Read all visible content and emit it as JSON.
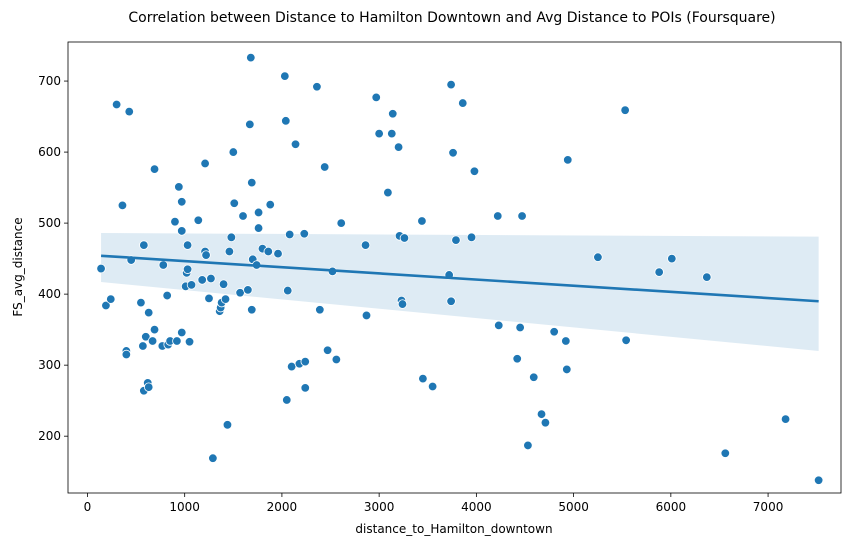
{
  "chart_data": {
    "type": "scatter",
    "title": "Correlation between Distance to Hamilton Downtown and Avg Distance to POIs (Foursquare)",
    "xlabel": "distance_to_Hamilton_downtown",
    "ylabel": "FS_avg_distance",
    "xlim": [
      -200,
      7750
    ],
    "ylim": [
      120,
      755
    ],
    "xticks": [
      0,
      1000,
      2000,
      3000,
      4000,
      5000,
      6000,
      7000
    ],
    "yticks": [
      200,
      300,
      400,
      500,
      600,
      700
    ],
    "grid": false,
    "colors": {
      "point": "#1f77b4",
      "line": "#1f77b4",
      "band": "#1f77b4"
    },
    "regression": {
      "x": [
        140,
        7520
      ],
      "y": [
        454,
        390
      ],
      "ci_lower": [
        417,
        320
      ],
      "ci_upper": [
        486,
        481
      ]
    },
    "points": [
      [
        140,
        436
      ],
      [
        190,
        384
      ],
      [
        240,
        393
      ],
      [
        300,
        667
      ],
      [
        360,
        525
      ],
      [
        400,
        320
      ],
      [
        400,
        315
      ],
      [
        430,
        657
      ],
      [
        450,
        448
      ],
      [
        550,
        388
      ],
      [
        570,
        327
      ],
      [
        580,
        469
      ],
      [
        580,
        264
      ],
      [
        600,
        340
      ],
      [
        620,
        275
      ],
      [
        630,
        269
      ],
      [
        630,
        374
      ],
      [
        670,
        334
      ],
      [
        690,
        576
      ],
      [
        690,
        350
      ],
      [
        770,
        327
      ],
      [
        780,
        441
      ],
      [
        820,
        398
      ],
      [
        830,
        329
      ],
      [
        850,
        334
      ],
      [
        900,
        502
      ],
      [
        920,
        334
      ],
      [
        940,
        551
      ],
      [
        970,
        346
      ],
      [
        970,
        530
      ],
      [
        970,
        489
      ],
      [
        1010,
        411
      ],
      [
        1020,
        430
      ],
      [
        1030,
        469
      ],
      [
        1030,
        435
      ],
      [
        1050,
        333
      ],
      [
        1070,
        413
      ],
      [
        1140,
        504
      ],
      [
        1180,
        420
      ],
      [
        1210,
        584
      ],
      [
        1210,
        460
      ],
      [
        1220,
        455
      ],
      [
        1250,
        394
      ],
      [
        1270,
        422
      ],
      [
        1290,
        169
      ],
      [
        1360,
        376
      ],
      [
        1370,
        381
      ],
      [
        1380,
        388
      ],
      [
        1400,
        414
      ],
      [
        1420,
        393
      ],
      [
        1440,
        216
      ],
      [
        1460,
        460
      ],
      [
        1480,
        480
      ],
      [
        1500,
        600
      ],
      [
        1510,
        528
      ],
      [
        1570,
        402
      ],
      [
        1600,
        510
      ],
      [
        1650,
        406
      ],
      [
        1670,
        639
      ],
      [
        1680,
        733
      ],
      [
        1690,
        557
      ],
      [
        1690,
        378
      ],
      [
        1700,
        449
      ],
      [
        1740,
        441
      ],
      [
        1760,
        515
      ],
      [
        1760,
        493
      ],
      [
        1800,
        464
      ],
      [
        1860,
        460
      ],
      [
        1880,
        526
      ],
      [
        1960,
        457
      ],
      [
        2030,
        707
      ],
      [
        2040,
        644
      ],
      [
        2050,
        251
      ],
      [
        2060,
        405
      ],
      [
        2080,
        484
      ],
      [
        2100,
        298
      ],
      [
        2140,
        611
      ],
      [
        2180,
        302
      ],
      [
        2230,
        485
      ],
      [
        2240,
        268
      ],
      [
        2240,
        305
      ],
      [
        2360,
        692
      ],
      [
        2390,
        378
      ],
      [
        2440,
        579
      ],
      [
        2470,
        321
      ],
      [
        2520,
        432
      ],
      [
        2560,
        308
      ],
      [
        2610,
        500
      ],
      [
        2860,
        469
      ],
      [
        2870,
        370
      ],
      [
        2970,
        677
      ],
      [
        3000,
        626
      ],
      [
        3090,
        543
      ],
      [
        3130,
        626
      ],
      [
        3140,
        654
      ],
      [
        3200,
        607
      ],
      [
        3210,
        482
      ],
      [
        3230,
        391
      ],
      [
        3240,
        386
      ],
      [
        3260,
        479
      ],
      [
        3440,
        503
      ],
      [
        3450,
        281
      ],
      [
        3550,
        270
      ],
      [
        3720,
        427
      ],
      [
        3740,
        695
      ],
      [
        3740,
        390
      ],
      [
        3760,
        599
      ],
      [
        3790,
        476
      ],
      [
        3860,
        669
      ],
      [
        3950,
        480
      ],
      [
        3980,
        573
      ],
      [
        4220,
        510
      ],
      [
        4230,
        356
      ],
      [
        4420,
        309
      ],
      [
        4450,
        353
      ],
      [
        4470,
        510
      ],
      [
        4530,
        187
      ],
      [
        4590,
        283
      ],
      [
        4670,
        231
      ],
      [
        4710,
        219
      ],
      [
        4800,
        347
      ],
      [
        4920,
        334
      ],
      [
        4930,
        294
      ],
      [
        4940,
        589
      ],
      [
        5250,
        452
      ],
      [
        5530,
        659
      ],
      [
        5540,
        335
      ],
      [
        5880,
        431
      ],
      [
        6010,
        450
      ],
      [
        6370,
        424
      ],
      [
        6560,
        176
      ],
      [
        7180,
        224
      ],
      [
        7520,
        138
      ]
    ]
  }
}
